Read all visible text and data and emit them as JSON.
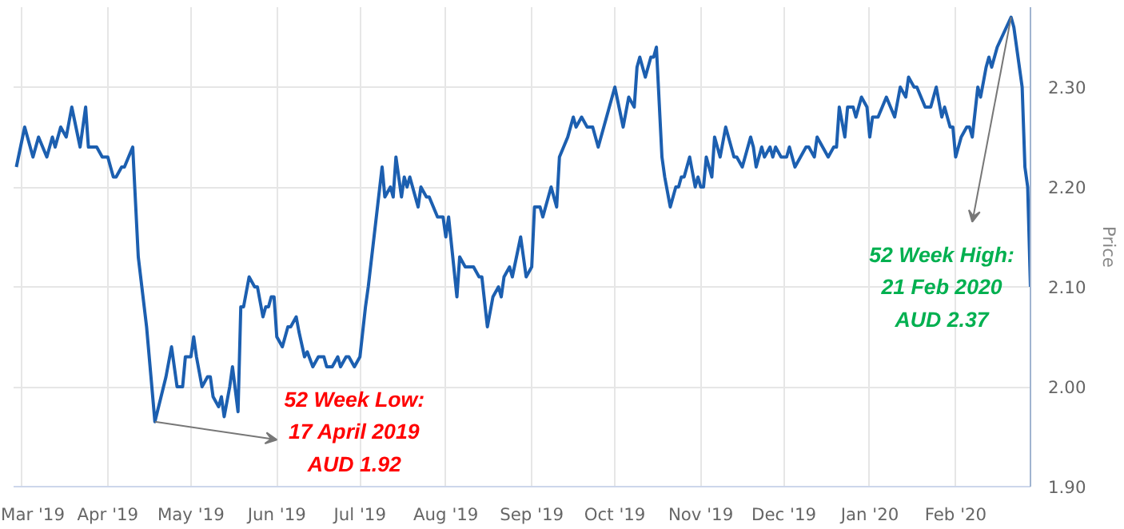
{
  "chart_data": {
    "type": "line",
    "ylabel": "Price",
    "x": [
      "2019-02-27",
      "2019-03-02",
      "2019-03-05",
      "2019-03-07",
      "2019-03-10",
      "2019-03-12",
      "2019-03-13",
      "2019-03-15",
      "2019-03-17",
      "2019-03-19",
      "2019-03-22",
      "2019-03-24",
      "2019-03-25",
      "2019-03-28",
      "2019-03-30",
      "2019-04-01",
      "2019-04-03",
      "2019-04-04",
      "2019-04-06",
      "2019-04-07",
      "2019-04-10",
      "2019-04-12",
      "2019-04-15",
      "2019-04-18",
      "2019-04-22",
      "2019-04-24",
      "2019-04-26",
      "2019-04-28",
      "2019-04-29",
      "2019-05-01",
      "2019-05-02",
      "2019-05-03",
      "2019-05-05",
      "2019-05-07",
      "2019-05-08",
      "2019-05-09",
      "2019-05-11",
      "2019-05-12",
      "2019-05-13",
      "2019-05-15",
      "2019-05-16",
      "2019-05-18",
      "2019-05-19",
      "2019-05-20",
      "2019-05-22",
      "2019-05-24",
      "2019-05-25",
      "2019-05-27",
      "2019-05-28",
      "2019-05-29",
      "2019-05-30",
      "2019-05-31",
      "2019-06-01",
      "2019-06-03",
      "2019-06-05",
      "2019-06-06",
      "2019-06-08",
      "2019-06-09",
      "2019-06-11",
      "2019-06-12",
      "2019-06-14",
      "2019-06-16",
      "2019-06-18",
      "2019-06-19",
      "2019-06-21",
      "2019-06-23",
      "2019-06-24",
      "2019-06-26",
      "2019-06-27",
      "2019-06-29",
      "2019-07-01",
      "2019-07-03",
      "2019-07-04",
      "2019-07-09",
      "2019-07-10",
      "2019-07-12",
      "2019-07-13",
      "2019-07-14",
      "2019-07-16",
      "2019-07-17",
      "2019-07-18",
      "2019-07-19",
      "2019-07-22",
      "2019-07-23",
      "2019-07-25",
      "2019-07-26",
      "2019-07-29",
      "2019-07-31",
      "2019-08-01",
      "2019-08-02",
      "2019-08-05",
      "2019-08-06",
      "2019-08-08",
      "2019-08-11",
      "2019-08-13",
      "2019-08-14",
      "2019-08-16",
      "2019-08-18",
      "2019-08-20",
      "2019-08-21",
      "2019-08-22",
      "2019-08-24",
      "2019-08-25",
      "2019-08-28",
      "2019-08-30",
      "2019-09-01",
      "2019-09-02",
      "2019-09-04",
      "2019-09-05",
      "2019-09-08",
      "2019-09-10",
      "2019-09-11",
      "2019-09-14",
      "2019-09-16",
      "2019-09-17",
      "2019-09-19",
      "2019-09-21",
      "2019-09-23",
      "2019-09-25",
      "2019-09-27",
      "2019-10-01",
      "2019-10-04",
      "2019-10-06",
      "2019-10-08",
      "2019-10-09",
      "2019-10-10",
      "2019-10-12",
      "2019-10-14",
      "2019-10-15",
      "2019-10-16",
      "2019-10-18",
      "2019-10-19",
      "2019-10-21",
      "2019-10-23",
      "2019-10-24",
      "2019-10-25",
      "2019-10-26",
      "2019-10-28",
      "2019-10-30",
      "2019-10-31",
      "2019-11-01",
      "2019-11-02",
      "2019-11-03",
      "2019-11-05",
      "2019-11-06",
      "2019-11-08",
      "2019-11-10",
      "2019-11-11",
      "2019-11-13",
      "2019-11-14",
      "2019-11-16",
      "2019-11-19",
      "2019-11-20",
      "2019-11-21",
      "2019-11-23",
      "2019-11-24",
      "2019-11-26",
      "2019-11-27",
      "2019-11-28",
      "2019-11-30",
      "2019-12-02",
      "2019-12-03",
      "2019-12-05",
      "2019-12-07",
      "2019-12-09",
      "2019-12-10",
      "2019-12-12",
      "2019-12-13",
      "2019-12-15",
      "2019-12-17",
      "2019-12-19",
      "2019-12-20",
      "2019-12-21",
      "2019-12-23",
      "2019-12-24",
      "2019-12-26",
      "2019-12-27",
      "2019-12-29",
      "2019-12-31",
      "2020-01-01",
      "2020-01-02",
      "2020-01-04",
      "2020-01-07",
      "2020-01-10",
      "2020-01-12",
      "2020-01-14",
      "2020-01-15",
      "2020-01-17",
      "2020-01-18",
      "2020-01-21",
      "2020-01-23",
      "2020-01-25",
      "2020-01-27",
      "2020-01-28",
      "2020-01-30",
      "2020-01-31",
      "2020-02-01",
      "2020-02-03",
      "2020-02-05",
      "2020-02-06",
      "2020-02-07",
      "2020-02-09",
      "2020-02-10",
      "2020-02-12",
      "2020-02-13",
      "2020-02-14",
      "2020-02-16",
      "2020-02-21",
      "2020-02-22",
      "2020-02-25",
      "2020-02-26",
      "2020-02-27",
      "2020-02-28"
    ],
    "series": [
      {
        "color": "#1c5fb0",
        "values": [
          2.22,
          2.26,
          2.23,
          2.25,
          2.23,
          2.25,
          2.24,
          2.26,
          2.25,
          2.28,
          2.24,
          2.28,
          2.24,
          2.24,
          2.23,
          2.23,
          2.21,
          2.21,
          2.22,
          2.22,
          2.24,
          2.13,
          2.06,
          1.965,
          2.01,
          2.04,
          2.0,
          2.0,
          2.03,
          2.03,
          2.05,
          2.03,
          2.0,
          2.01,
          2.01,
          1.99,
          1.98,
          1.99,
          1.97,
          2.0,
          2.02,
          1.975,
          2.08,
          2.08,
          2.11,
          2.1,
          2.1,
          2.07,
          2.08,
          2.08,
          2.09,
          2.09,
          2.05,
          2.04,
          2.06,
          2.06,
          2.07,
          2.055,
          2.03,
          2.035,
          2.02,
          2.03,
          2.03,
          2.02,
          2.02,
          2.03,
          2.02,
          2.03,
          2.03,
          2.02,
          2.03,
          2.08,
          2.1,
          2.22,
          2.19,
          2.2,
          2.19,
          2.23,
          2.19,
          2.21,
          2.2,
          2.21,
          2.18,
          2.2,
          2.19,
          2.19,
          2.17,
          2.17,
          2.15,
          2.17,
          2.09,
          2.13,
          2.12,
          2.12,
          2.11,
          2.11,
          2.06,
          2.09,
          2.1,
          2.09,
          2.11,
          2.12,
          2.11,
          2.15,
          2.11,
          2.12,
          2.18,
          2.18,
          2.17,
          2.2,
          2.18,
          2.23,
          2.25,
          2.27,
          2.26,
          2.27,
          2.26,
          2.26,
          2.24,
          2.26,
          2.3,
          2.26,
          2.29,
          2.28,
          2.32,
          2.33,
          2.31,
          2.33,
          2.33,
          2.34,
          2.23,
          2.21,
          2.18,
          2.2,
          2.2,
          2.21,
          2.21,
          2.23,
          2.2,
          2.21,
          2.2,
          2.2,
          2.23,
          2.21,
          2.25,
          2.23,
          2.26,
          2.25,
          2.23,
          2.23,
          2.22,
          2.25,
          2.24,
          2.22,
          2.24,
          2.23,
          2.24,
          2.23,
          2.24,
          2.23,
          2.23,
          2.24,
          2.22,
          2.23,
          2.24,
          2.24,
          2.23,
          2.25,
          2.24,
          2.23,
          2.24,
          2.24,
          2.28,
          2.25,
          2.28,
          2.28,
          2.27,
          2.29,
          2.28,
          2.25,
          2.27,
          2.27,
          2.29,
          2.27,
          2.3,
          2.29,
          2.31,
          2.3,
          2.3,
          2.28,
          2.28,
          2.3,
          2.27,
          2.28,
          2.26,
          2.26,
          2.23,
          2.25,
          2.26,
          2.26,
          2.25,
          2.3,
          2.29,
          2.32,
          2.33,
          2.32,
          2.34,
          2.37,
          2.36,
          2.3,
          2.22,
          2.2,
          2.1
        ]
      }
    ],
    "xlim": [
      "2019-02-26",
      "2020-02-28"
    ],
    "xticks": [
      {
        "value": "2019-03-01",
        "label": "Mar '19"
      },
      {
        "value": "2019-04-01",
        "label": "Apr '19"
      },
      {
        "value": "2019-05-01",
        "label": "May '19"
      },
      {
        "value": "2019-06-01",
        "label": "Jun '19"
      },
      {
        "value": "2019-07-01",
        "label": "Jul '19"
      },
      {
        "value": "2019-08-01",
        "label": "Aug '19"
      },
      {
        "value": "2019-09-01",
        "label": "Sep '19"
      },
      {
        "value": "2019-10-01",
        "label": "Oct '19"
      },
      {
        "value": "2019-11-01",
        "label": "Nov '19"
      },
      {
        "value": "2019-12-01",
        "label": "Dec '19"
      },
      {
        "value": "2020-01-01",
        "label": "Jan '20"
      },
      {
        "value": "2020-02-01",
        "label": "Feb '20"
      }
    ],
    "ylim": [
      1.9,
      2.38
    ],
    "yticks": [
      {
        "value": 1.9,
        "label": "1.90"
      },
      {
        "value": 2.0,
        "label": "2.00"
      },
      {
        "value": 2.1,
        "label": "2.10"
      },
      {
        "value": 2.2,
        "label": "2.20"
      },
      {
        "value": 2.3,
        "label": "2.30"
      }
    ],
    "grid": true,
    "marker": "none",
    "line_style": "solid",
    "annotations": [
      {
        "text": "52 Week Low:\n17 April 2019\nAUD 1.92",
        "x": "2019-04-18",
        "y": 1.965
      },
      {
        "text": "52 Week High:\n21 Feb 2020\nAUD 2.37",
        "x": "2020-02-21",
        "y": 2.37
      }
    ]
  }
}
